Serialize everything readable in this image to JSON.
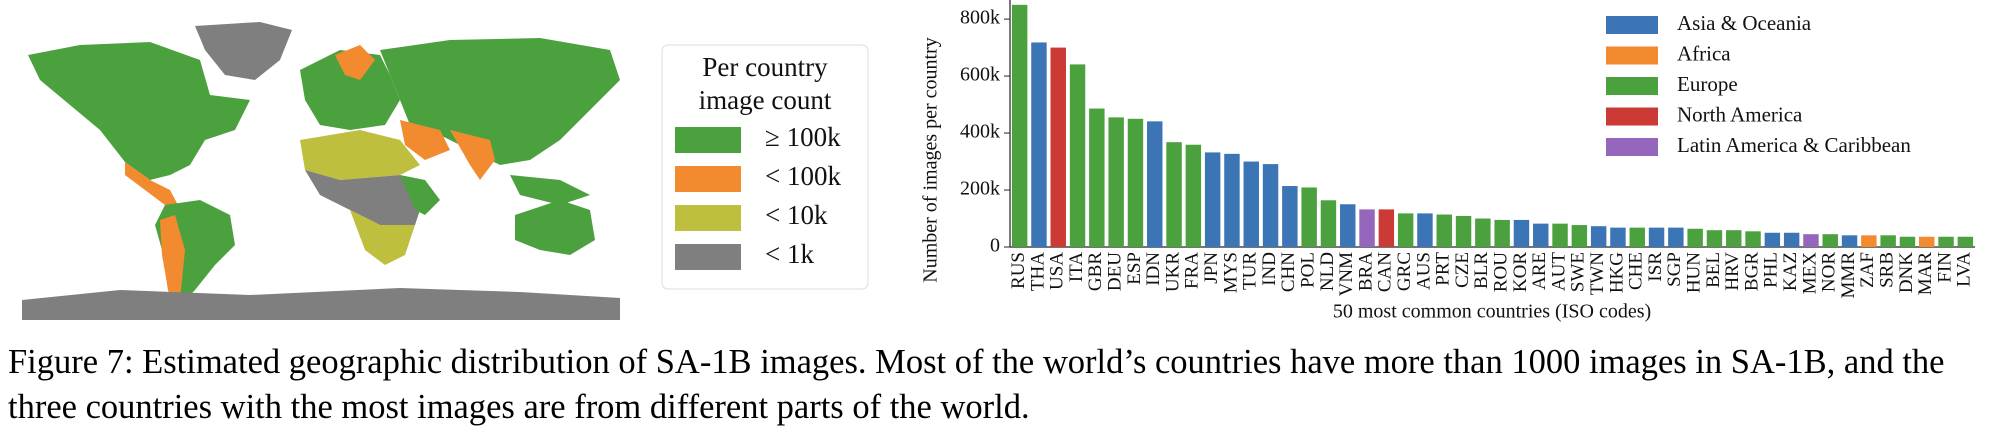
{
  "chart_data": [
    {
      "type": "map",
      "title": "Per country image count",
      "legend": [
        {
          "label": "≥ 100k",
          "color": "#4ca13f"
        },
        {
          "label": "< 100k",
          "color": "#f28a30"
        },
        {
          "label": "< 10k",
          "color": "#bfbf3f"
        },
        {
          "label": "< 1k",
          "color": "#7f7f7f"
        }
      ]
    },
    {
      "type": "bar",
      "ylabel": "Number of images per country",
      "xlabel": "50 most common countries (ISO codes)",
      "categories": [
        "RUS",
        "THA",
        "USA",
        "ITA",
        "GBR",
        "DEU",
        "ESP",
        "IDN",
        "UKR",
        "FRA",
        "JPN",
        "MYS",
        "TUR",
        "IND",
        "CHN",
        "POL",
        "NLD",
        "VNM",
        "BRA",
        "CAN",
        "GRC",
        "AUS",
        "PRT",
        "CZE",
        "BLR",
        "ROU",
        "KOR",
        "ARE",
        "AUT",
        "SWE",
        "TWN",
        "HKG",
        "CHE",
        "ISR",
        "SGP",
        "HUN",
        "BEL",
        "HRV",
        "BGR",
        "PHL",
        "KAZ",
        "MEX",
        "NOR",
        "MMR",
        "ZAF",
        "SRB",
        "DNK",
        "MAR",
        "FIN",
        "LVA"
      ],
      "series": [
        {
          "name": "Asia & Oceania",
          "color": "#3b75b5",
          "values": [
            null,
            718000,
            null,
            null,
            null,
            null,
            null,
            441000,
            null,
            null,
            332000,
            327000,
            300000,
            291000,
            214000,
            null,
            null,
            150000,
            null,
            null,
            null,
            118000,
            null,
            null,
            null,
            null,
            95000,
            82000,
            null,
            null,
            73000,
            68000,
            null,
            68000,
            68000,
            null,
            null,
            null,
            null,
            50000,
            50000,
            null,
            null,
            41000,
            null,
            null,
            null,
            null,
            null,
            null
          ]
        },
        {
          "name": "Africa",
          "color": "#f28a30",
          "values": [
            null,
            null,
            null,
            null,
            null,
            null,
            null,
            null,
            null,
            null,
            null,
            null,
            null,
            null,
            null,
            null,
            null,
            null,
            null,
            null,
            null,
            null,
            null,
            null,
            null,
            null,
            null,
            null,
            null,
            null,
            null,
            null,
            null,
            null,
            null,
            null,
            null,
            null,
            null,
            null,
            null,
            null,
            null,
            null,
            41000,
            null,
            null,
            36000,
            null,
            null
          ]
        },
        {
          "name": "Europe",
          "color": "#4ca13f",
          "values": [
            850000,
            null,
            null,
            641000,
            486000,
            455000,
            450000,
            null,
            368000,
            359000,
            null,
            null,
            null,
            null,
            null,
            209000,
            164000,
            null,
            null,
            null,
            118000,
            null,
            114000,
            109000,
            100000,
            95000,
            null,
            null,
            82000,
            77000,
            null,
            null,
            68000,
            null,
            null,
            64000,
            59000,
            59000,
            55000,
            null,
            null,
            null,
            45000,
            null,
            null,
            41000,
            36000,
            null,
            36000,
            36000
          ]
        },
        {
          "name": "North America",
          "color": "#cc3a35",
          "values": [
            null,
            null,
            700000,
            null,
            null,
            null,
            null,
            null,
            null,
            null,
            null,
            null,
            null,
            null,
            null,
            null,
            null,
            null,
            null,
            132000,
            null,
            null,
            null,
            null,
            null,
            null,
            null,
            null,
            null,
            null,
            null,
            null,
            null,
            null,
            null,
            null,
            null,
            null,
            null,
            null,
            null,
            null,
            null,
            null,
            null,
            null,
            null,
            null,
            null,
            null
          ]
        },
        {
          "name": "Latin America & Caribbean",
          "color": "#9467bd",
          "values": [
            null,
            null,
            null,
            null,
            null,
            null,
            null,
            null,
            null,
            null,
            null,
            null,
            null,
            null,
            null,
            null,
            null,
            null,
            132000,
            null,
            null,
            null,
            null,
            null,
            null,
            null,
            null,
            null,
            null,
            null,
            null,
            null,
            null,
            null,
            null,
            null,
            null,
            null,
            null,
            null,
            null,
            45000,
            null,
            null,
            null,
            null,
            null,
            null,
            null,
            null
          ]
        }
      ],
      "ylim": [
        0,
        860000
      ],
      "yticks": [
        0,
        {
          "value": 200000,
          "label": "200k"
        },
        {
          "value": 400000,
          "label": "400k"
        },
        {
          "value": 600000,
          "label": "600k"
        },
        {
          "value": 800000,
          "label": "800k"
        }
      ],
      "legend": "upper right"
    }
  ],
  "caption": "Figure 7: Estimated geographic distribution of SA-1B images. Most of the world’s countries have more than 1000 images in SA-1B, and the three countries with the most images are from different parts of the world."
}
